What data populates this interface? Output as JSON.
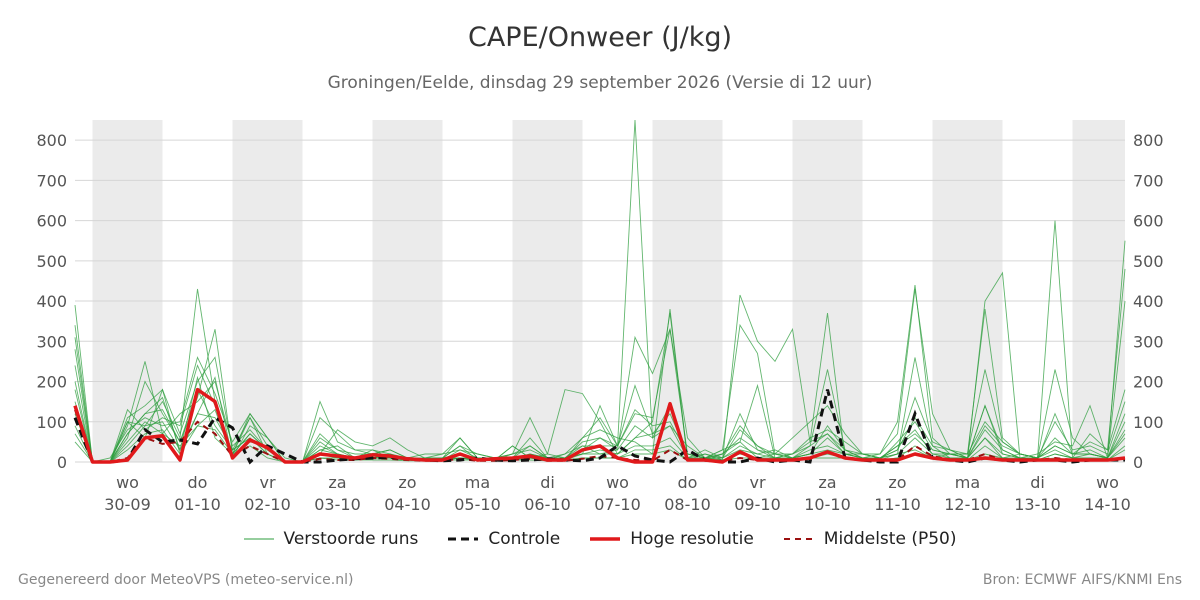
{
  "header": {
    "title": "CAPE/Onweer (J/kg)",
    "subtitle": "Groningen/Eelde, dinsdag 29 september 2026 (Versie di 12 uur)"
  },
  "footer": {
    "left": "Gegenereerd door MeteoVPS (meteo-service.nl)",
    "right": "Bron: ECMWF AIFS/KNMI Ens"
  },
  "legend": {
    "items": [
      {
        "label": "Verstoorde runs",
        "color": "#2e9e3e",
        "style": "thin"
      },
      {
        "label": "Controle",
        "color": "#111111",
        "style": "dashed-bold"
      },
      {
        "label": "Hoge resolutie",
        "color": "#e0191b",
        "style": "solid-bold"
      },
      {
        "label": "Middelste (P50)",
        "color": "#9b1010",
        "style": "dashed"
      }
    ]
  },
  "chart_data": {
    "type": "line",
    "title": "CAPE/Onweer (J/kg)",
    "x_unit": "date",
    "x_start": "2026-09-29 18:00",
    "x_end": "2026-10-14 18:00",
    "x_step_hours": 6,
    "ylim": [
      0,
      850
    ],
    "yticks": [
      0,
      100,
      200,
      300,
      400,
      500,
      600,
      700,
      800
    ],
    "grid": true,
    "legend_position": "bottom",
    "day_ticks": [
      {
        "day": "wo",
        "date": "30-09"
      },
      {
        "day": "do",
        "date": "01-10"
      },
      {
        "day": "vr",
        "date": "02-10"
      },
      {
        "day": "za",
        "date": "03-10"
      },
      {
        "day": "zo",
        "date": "04-10"
      },
      {
        "day": "ma",
        "date": "05-10"
      },
      {
        "day": "di",
        "date": "06-10"
      },
      {
        "day": "wo",
        "date": "07-10"
      },
      {
        "day": "do",
        "date": "08-10"
      },
      {
        "day": "vr",
        "date": "09-10"
      },
      {
        "day": "za",
        "date": "10-10"
      },
      {
        "day": "zo",
        "date": "11-10"
      },
      {
        "day": "ma",
        "date": "12-10"
      },
      {
        "day": "di",
        "date": "13-10"
      },
      {
        "day": "wo",
        "date": "14-10"
      }
    ],
    "shaded_bands": [
      [
        "2026-09-30",
        "2026-10-01"
      ],
      [
        "2026-10-02",
        "2026-10-03"
      ],
      [
        "2026-10-04",
        "2026-10-05"
      ],
      [
        "2026-10-06",
        "2026-10-07"
      ],
      [
        "2026-10-08",
        "2026-10-09"
      ],
      [
        "2026-10-10",
        "2026-10-11"
      ],
      [
        "2026-10-12",
        "2026-10-13"
      ],
      [
        "2026-10-14",
        "2026-10-14 18:00"
      ]
    ],
    "series": [
      {
        "name": "Controle",
        "color": "#111111",
        "values": [
          110,
          0,
          0,
          5,
          80,
          50,
          55,
          45,
          110,
          85,
          0,
          40,
          20,
          0,
          0,
          5,
          8,
          10,
          12,
          8,
          5,
          3,
          5,
          10,
          5,
          3,
          5,
          8,
          5,
          3,
          10,
          40,
          15,
          5,
          0,
          30,
          5,
          0,
          0,
          10,
          0,
          5,
          0,
          180,
          10,
          5,
          0,
          0,
          120,
          10,
          5,
          0,
          10,
          5,
          0,
          5,
          5,
          0,
          5,
          5,
          5
        ]
      },
      {
        "name": "Hoge resolutie",
        "color": "#e0191b",
        "values": [
          140,
          0,
          0,
          5,
          60,
          65,
          5,
          180,
          150,
          10,
          55,
          35,
          0,
          0,
          20,
          15,
          10,
          18,
          15,
          8,
          5,
          5,
          20,
          5,
          8,
          10,
          15,
          5,
          5,
          30,
          40,
          10,
          0,
          0,
          145,
          5,
          5,
          0,
          25,
          5,
          5,
          5,
          10,
          25,
          10,
          5,
          5,
          5,
          20,
          10,
          5,
          5,
          10,
          5,
          5,
          5,
          5,
          5,
          5,
          5,
          10
        ]
      },
      {
        "name": "Middelste (P50)",
        "color": "#9b1010",
        "values": [
          130,
          0,
          0,
          10,
          60,
          45,
          50,
          100,
          70,
          15,
          40,
          20,
          0,
          0,
          8,
          5,
          5,
          10,
          8,
          5,
          3,
          3,
          8,
          3,
          3,
          5,
          8,
          3,
          3,
          8,
          15,
          10,
          5,
          3,
          30,
          5,
          3,
          3,
          10,
          5,
          5,
          5,
          8,
          25,
          10,
          5,
          5,
          5,
          40,
          15,
          5,
          5,
          20,
          5,
          5,
          5,
          10,
          5,
          5,
          5,
          10
        ]
      },
      {
        "name": "Verstoorde runs",
        "color": "#2e9e3e",
        "members": [
          {
            "values": [
              390,
              0,
              0,
              70,
              120,
              160,
              30,
              210,
              60,
              20,
              70,
              30,
              0,
              0,
              40,
              20,
              10,
              15,
              10,
              5,
              3,
              5,
              10,
              5,
              5,
              40,
              10,
              5,
              20,
              60,
              80,
              60,
              50,
              20,
              380,
              10,
              5,
              20,
              90,
              40,
              10,
              20,
              60,
              80,
              50,
              20,
              20,
              100,
              440,
              60,
              20,
              20,
              380,
              60,
              20,
              10,
              40,
              20,
              50,
              30,
              180
            ]
          },
          {
            "values": [
              340,
              0,
              0,
              100,
              90,
              150,
              60,
              430,
              150,
              20,
              110,
              40,
              0,
              0,
              110,
              70,
              30,
              20,
              30,
              10,
              5,
              10,
              60,
              10,
              5,
              20,
              30,
              10,
              10,
              40,
              20,
              30,
              310,
              220,
              330,
              60,
              10,
              30,
              50,
              10,
              20,
              20,
              40,
              230,
              30,
              10,
              20,
              70,
              430,
              120,
              30,
              10,
              140,
              30,
              10,
              5,
              20,
              10,
              20,
              10,
              120
            ]
          },
          {
            "values": [
              310,
              0,
              0,
              60,
              200,
              120,
              50,
              180,
              90,
              30,
              60,
              20,
              0,
              0,
              30,
              40,
              10,
              10,
              20,
              5,
              10,
              10,
              40,
              5,
              10,
              5,
              20,
              10,
              5,
              60,
              110,
              40,
              190,
              70,
              120,
              20,
              10,
              30,
              340,
              270,
              20,
              60,
              100,
              140,
              70,
              20,
              10,
              40,
              80,
              20,
              20,
              10,
              140,
              20,
              10,
              20,
              50,
              40,
              140,
              10,
              550
            ]
          },
          {
            "values": [
              280,
              0,
              0,
              110,
              140,
              180,
              20,
              120,
              210,
              10,
              90,
              60,
              0,
              0,
              60,
              30,
              10,
              10,
              10,
              5,
              10,
              20,
              30,
              20,
              10,
              10,
              60,
              10,
              10,
              20,
              140,
              40,
              850,
              60,
              90,
              40,
              10,
              10,
              120,
              30,
              20,
              10,
              20,
              90,
              30,
              20,
              10,
              20,
              260,
              40,
              30,
              20,
              100,
              50,
              20,
              10,
              230,
              60,
              20,
              10,
              400
            ]
          },
          {
            "values": [
              240,
              0,
              10,
              80,
              110,
              90,
              100,
              260,
              170,
              50,
              120,
              60,
              10,
              0,
              20,
              80,
              50,
              40,
              60,
              30,
              10,
              5,
              30,
              10,
              5,
              40,
              10,
              20,
              180,
              170,
              100,
              20,
              60,
              100,
              370,
              5,
              20,
              5,
              415,
              300,
              250,
              330,
              50,
              370,
              10,
              5,
              5,
              20,
              30,
              10,
              20,
              10,
              60,
              10,
              20,
              10,
              600,
              10,
              70,
              30,
              480
            ]
          },
          {
            "values": [
              200,
              0,
              0,
              50,
              100,
              70,
              40,
              90,
              130,
              10,
              50,
              40,
              0,
              0,
              50,
              20,
              10,
              10,
              20,
              5,
              10,
              5,
              20,
              5,
              5,
              10,
              40,
              10,
              5,
              30,
              60,
              40,
              120,
              110,
              330,
              20,
              10,
              20,
              50,
              190,
              10,
              10,
              20,
              60,
              20,
              10,
              5,
              50,
              100,
              30,
              20,
              10,
              80,
              30,
              10,
              5,
              120,
              20,
              30,
              10,
              100
            ]
          },
          {
            "values": [
              180,
              0,
              0,
              90,
              250,
              70,
              120,
              150,
              200,
              40,
              80,
              30,
              0,
              0,
              150,
              50,
              30,
              30,
              20,
              10,
              20,
              20,
              60,
              10,
              10,
              20,
              110,
              20,
              10,
              50,
              60,
              30,
              90,
              60,
              140,
              10,
              30,
              10,
              80,
              40,
              20,
              10,
              40,
              70,
              30,
              10,
              10,
              30,
              160,
              50,
              30,
              10,
              90,
              40,
              20,
              10,
              100,
              30,
              40,
              20,
              150
            ]
          },
          {
            "values": [
              150,
              0,
              0,
              130,
              80,
              110,
              90,
              240,
              140,
              20,
              120,
              60,
              0,
              0,
              70,
              30,
              20,
              20,
              30,
              10,
              10,
              10,
              40,
              20,
              10,
              20,
              40,
              10,
              20,
              40,
              40,
              40,
              130,
              90,
              100,
              20,
              10,
              20,
              60,
              30,
              10,
              20,
              50,
              70,
              20,
              20,
              10,
              40,
              70,
              30,
              20,
              20,
              230,
              50,
              20,
              10,
              60,
              20,
              20,
              10,
              80
            ]
          },
          {
            "values": [
              120,
              0,
              0,
              100,
              60,
              180,
              70,
              200,
              260,
              30,
              110,
              20,
              0,
              0,
              30,
              20,
              10,
              30,
              10,
              5,
              10,
              10,
              20,
              10,
              10,
              10,
              20,
              10,
              10,
              20,
              30,
              20,
              60,
              70,
              90,
              10,
              20,
              10,
              40,
              20,
              30,
              10,
              30,
              40,
              20,
              10,
              10,
              30,
              110,
              40,
              10,
              10,
              400,
              470,
              10,
              10,
              40,
              20,
              20,
              10,
              70
            ]
          },
          {
            "values": [
              90,
              0,
              0,
              70,
              120,
              130,
              50,
              160,
              330,
              20,
              70,
              30,
              0,
              0,
              20,
              10,
              10,
              10,
              10,
              5,
              5,
              10,
              10,
              10,
              5,
              10,
              10,
              5,
              5,
              20,
              20,
              20,
              40,
              40,
              60,
              10,
              10,
              10,
              30,
              20,
              10,
              10,
              20,
              30,
              20,
              10,
              10,
              20,
              60,
              20,
              10,
              10,
              60,
              20,
              10,
              10,
              30,
              10,
              10,
              10,
              60
            ]
          },
          {
            "values": [
              70,
              0,
              0,
              40,
              90,
              100,
              30,
              120,
              110,
              30,
              60,
              20,
              0,
              0,
              10,
              10,
              5,
              10,
              10,
              5,
              5,
              5,
              10,
              5,
              5,
              5,
              10,
              5,
              5,
              10,
              10,
              10,
              30,
              30,
              40,
              5,
              10,
              5,
              20,
              10,
              10,
              5,
              10,
              20,
              10,
              5,
              5,
              10,
              40,
              10,
              10,
              5,
              40,
              10,
              10,
              5,
              20,
              10,
              10,
              5,
              40
            ]
          },
          {
            "values": [
              50,
              0,
              0,
              30,
              70,
              80,
              20,
              90,
              80,
              20,
              40,
              10,
              0,
              0,
              10,
              5,
              5,
              5,
              5,
              3,
              3,
              5,
              5,
              5,
              3,
              5,
              5,
              3,
              3,
              10,
              10,
              10,
              20,
              20,
              30,
              5,
              5,
              5,
              10,
              10,
              5,
              5,
              10,
              10,
              10,
              5,
              5,
              10,
              20,
              10,
              5,
              5,
              20,
              10,
              5,
              5,
              10,
              5,
              5,
              5,
              30
            ]
          }
        ]
      }
    ]
  }
}
